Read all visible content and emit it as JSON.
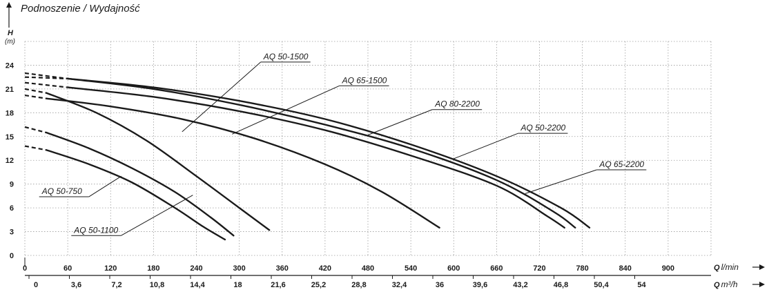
{
  "chart_data": {
    "type": "line",
    "title": "Podnoszenie / Wydajność",
    "y_axis": {
      "label": "H",
      "unit": "(m)",
      "ticks": [
        0,
        3,
        6,
        9,
        12,
        15,
        18,
        21,
        24
      ],
      "ylim": [
        0,
        27
      ]
    },
    "x_axis_primary": {
      "label": "Q",
      "unit": "l/min",
      "ticks": [
        0,
        60,
        120,
        180,
        240,
        300,
        360,
        420,
        480,
        540,
        600,
        660,
        720,
        780,
        840,
        900
      ],
      "xlim": [
        0,
        960
      ]
    },
    "x_axis_secondary": {
      "label": "Q",
      "unit": "m³/h",
      "ticks": [
        "0",
        "3,6",
        "7,2",
        "10,8",
        "14,4",
        "18",
        "21,6",
        "25,2",
        "28,8",
        "32,4",
        "36",
        "39,6",
        "43,2",
        "46,8",
        "50,4",
        "54"
      ]
    },
    "grid": true,
    "series": [
      {
        "name": "AQ 50-750",
        "dashed_to": 30,
        "x": [
          0,
          30,
          90,
          150,
          210,
          250,
          280
        ],
        "y": [
          13.8,
          13.3,
          11.5,
          9.2,
          6.0,
          3.6,
          2.0
        ]
      },
      {
        "name": "AQ 50-1100",
        "dashed_to": 30,
        "x": [
          0,
          30,
          90,
          150,
          210,
          260,
          292
        ],
        "y": [
          16.2,
          15.5,
          13.5,
          11.0,
          8.0,
          4.8,
          2.5
        ]
      },
      {
        "name": "AQ 50-1500",
        "dashed_to": 30,
        "x": [
          0,
          30,
          100,
          170,
          240,
          300,
          342
        ],
        "y": [
          21.0,
          20.5,
          18.0,
          14.5,
          10.0,
          6.0,
          3.2
        ]
      },
      {
        "name": "AQ 65-1500",
        "dashed_to": 30,
        "x": [
          0,
          30,
          120,
          220,
          320,
          420,
          500,
          580
        ],
        "y": [
          20.2,
          19.8,
          18.8,
          17.2,
          14.8,
          11.5,
          8.0,
          3.5
        ]
      },
      {
        "name": "AQ 80-2200",
        "dashed_to": 60,
        "x": [
          0,
          60,
          180,
          300,
          420,
          540,
          660,
          750,
          790
        ],
        "y": [
          23.0,
          22.3,
          21.2,
          19.5,
          17.2,
          14.0,
          10.0,
          6.0,
          3.5
        ]
      },
      {
        "name": "AQ 50-2200",
        "dashed_to": 60,
        "x": [
          0,
          60,
          180,
          300,
          420,
          540,
          660,
          740,
          770
        ],
        "y": [
          22.5,
          22.3,
          21.0,
          19.0,
          16.5,
          13.5,
          9.5,
          5.5,
          3.5
        ]
      },
      {
        "name": "AQ 65-2200",
        "dashed_to": 60,
        "x": [
          0,
          60,
          180,
          300,
          420,
          540,
          660,
          730,
          755
        ],
        "y": [
          21.8,
          21.2,
          20.0,
          18.2,
          15.8,
          12.6,
          8.8,
          5.0,
          3.5
        ]
      }
    ],
    "annotations": [
      {
        "text": "AQ 50-1500",
        "label_at": [
          330,
          24.4
        ],
        "points_to": [
          220,
          15.6
        ]
      },
      {
        "text": "AQ 65-1500",
        "label_at": [
          440,
          21.4
        ],
        "points_to": [
          290,
          15.3
        ]
      },
      {
        "text": "AQ 80-2200",
        "label_at": [
          570,
          18.4
        ],
        "points_to": [
          480,
          15.2
        ]
      },
      {
        "text": "AQ 50-2200",
        "label_at": [
          690,
          15.4
        ],
        "points_to": [
          600,
          12.2
        ]
      },
      {
        "text": "AQ 65-2200",
        "label_at": [
          800,
          10.8
        ],
        "points_to": [
          700,
          7.8
        ]
      },
      {
        "text": "AQ 50-750",
        "label_at": [
          20,
          7.4
        ],
        "points_to": [
          135,
          10.0
        ]
      },
      {
        "text": "AQ 50-1100",
        "label_at": [
          65,
          2.5
        ],
        "points_to": [
          235,
          7.6
        ]
      }
    ]
  }
}
